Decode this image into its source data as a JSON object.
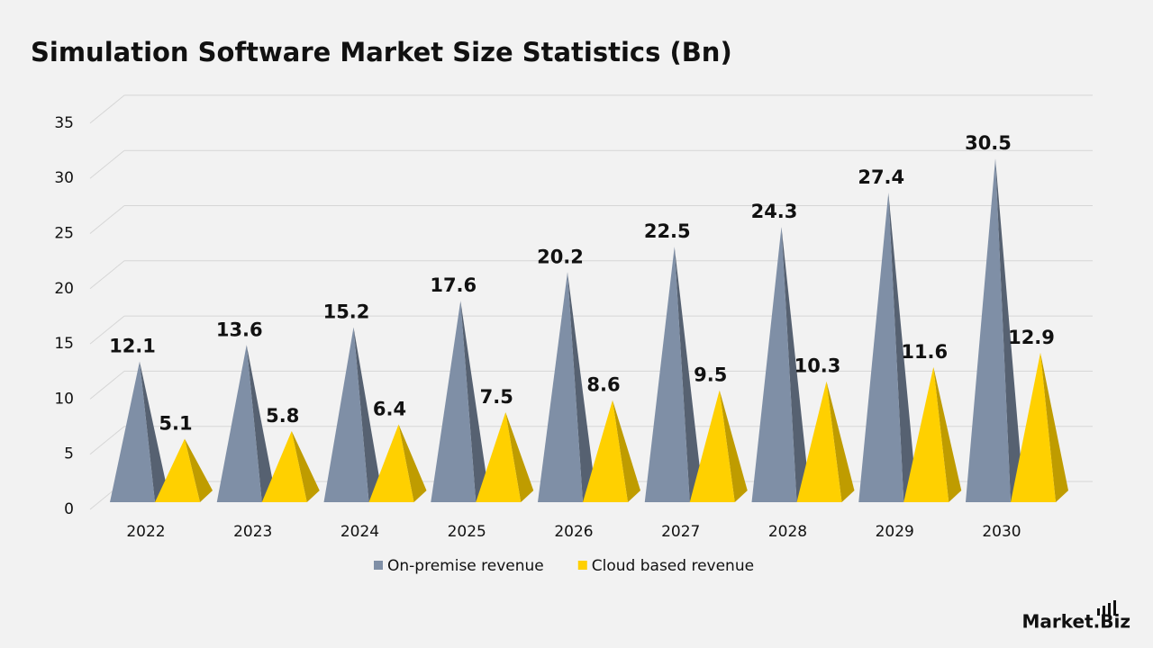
{
  "chart_data": {
    "type": "bar",
    "title": "Simulation Software Market Size Statistics (Bn)",
    "categories": [
      "2022",
      "2023",
      "2024",
      "2025",
      "2026",
      "2027",
      "2028",
      "2029",
      "2030"
    ],
    "series": [
      {
        "name": "On-premise revenue",
        "color": "#7f8fa6",
        "values": [
          12.1,
          13.6,
          15.2,
          17.6,
          20.2,
          22.5,
          24.3,
          27.4,
          30.5
        ]
      },
      {
        "name": "Cloud based revenue",
        "color": "#ffd000",
        "values": [
          5.1,
          5.8,
          6.4,
          7.5,
          8.6,
          9.5,
          10.3,
          11.6,
          12.9
        ]
      }
    ],
    "ylim": [
      0,
      35
    ],
    "yticks": [
      0,
      5,
      10,
      15,
      20,
      25,
      30,
      35
    ],
    "grid": true,
    "legend": "bottom",
    "brand": "Market.Biz"
  }
}
